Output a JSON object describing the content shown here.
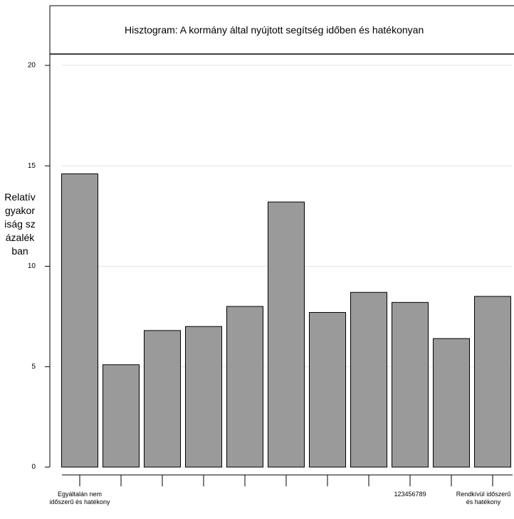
{
  "chart_data": {
    "type": "bar",
    "title": "Hisztogram: A kormány által nyújtott segítség időben és hatékonyan",
    "y_label": "Relatív gyakoriság százalékban",
    "categories": [
      "Egyáltalán nem időszerű és hatékony",
      null,
      null,
      null,
      null,
      null,
      null,
      null,
      "123456789",
      null,
      "Rendkívül időszerű és hatékony"
    ],
    "values": [
      14.6,
      5.1,
      6.8,
      7.0,
      8.0,
      13.2,
      7.7,
      8.7,
      8.2,
      6.4,
      8.5
    ],
    "color": "#9a9a9a",
    "ylim": [
      0,
      20
    ],
    "yticks": [
      0,
      5,
      10,
      15,
      20
    ],
    "grid": true
  }
}
